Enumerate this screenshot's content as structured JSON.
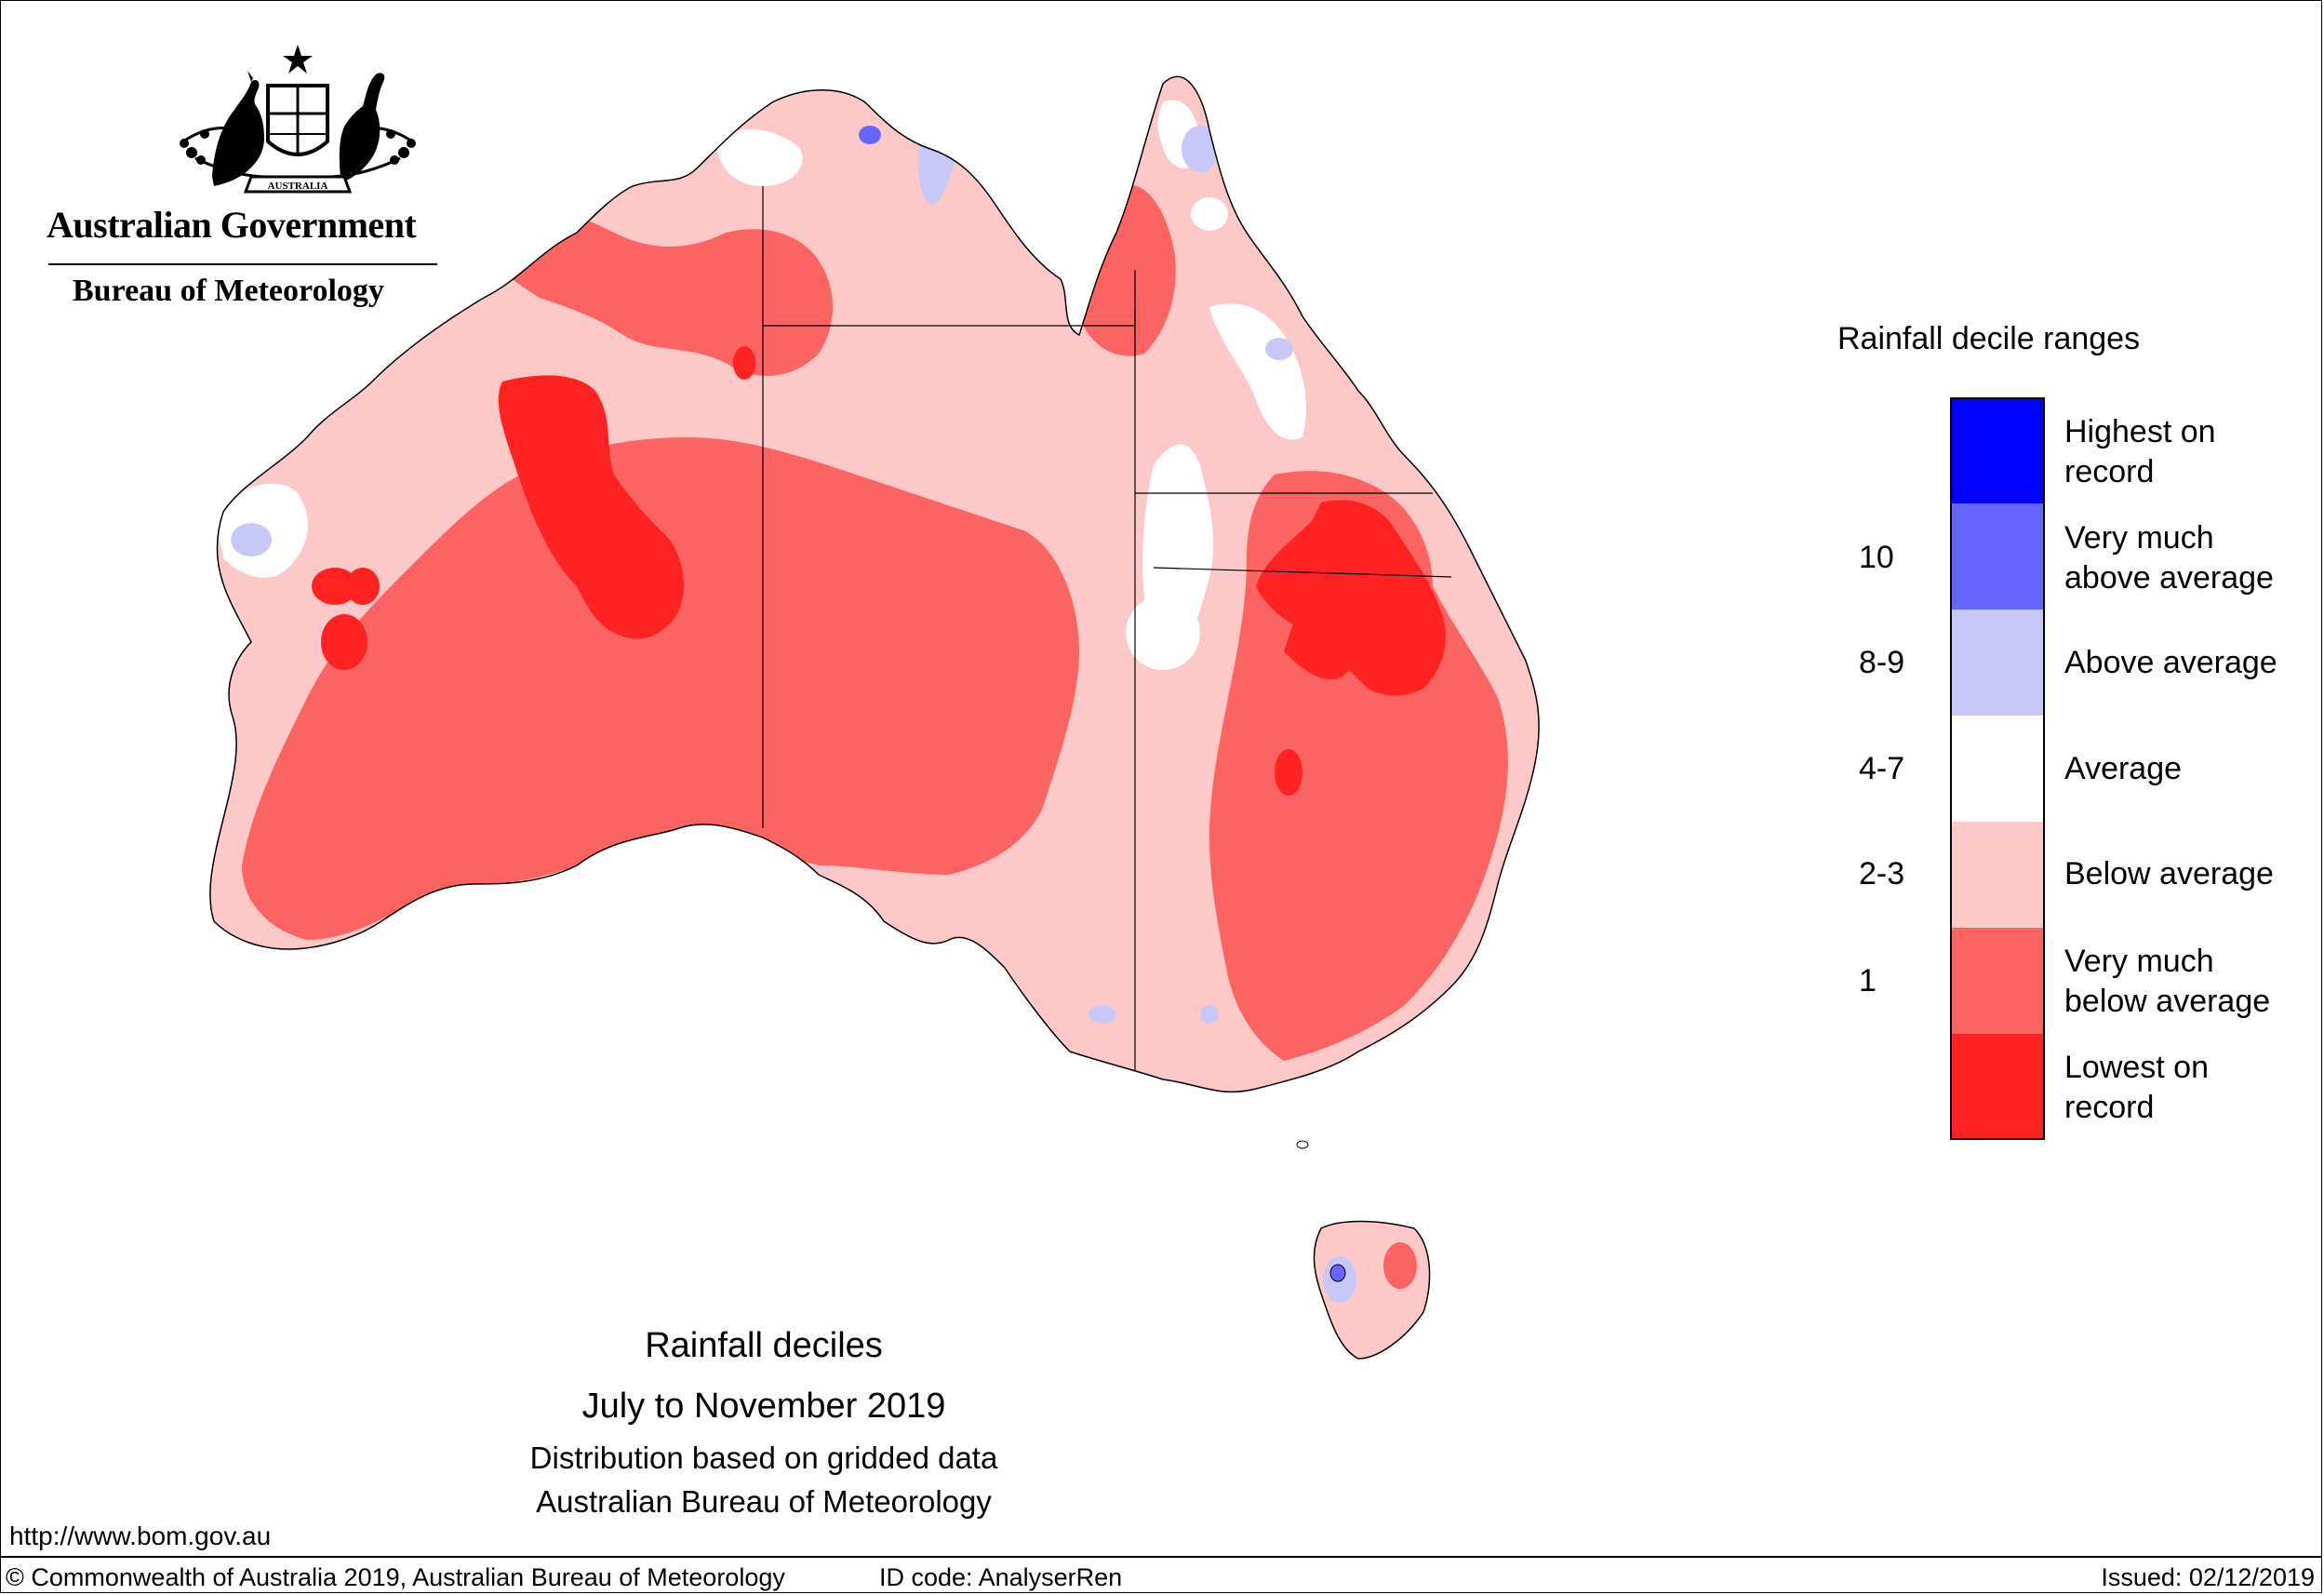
{
  "header": {
    "government": "Australian Government",
    "bureau": "Bureau of Meteorology",
    "crest_motto": "AUSTRALIA"
  },
  "legend": {
    "title": "Rainfall decile ranges",
    "items": [
      {
        "label_line1": "Highest on",
        "label_line2": "record",
        "range": "",
        "color": "#0000ff"
      },
      {
        "label_line1": "Very much",
        "label_line2": "above average",
        "range": "10",
        "color": "#6666ff"
      },
      {
        "label_line1": "Above average",
        "label_line2": "",
        "range": "8-9",
        "color": "#c8c8f8"
      },
      {
        "label_line1": "Average",
        "label_line2": "",
        "range": "4-7",
        "color": "#ffffff"
      },
      {
        "label_line1": "Below average",
        "label_line2": "",
        "range": "2-3",
        "color": "#fcc8c8"
      },
      {
        "label_line1": "Very much",
        "label_line2": "below average",
        "range": "1",
        "color": "#fc6464"
      },
      {
        "label_line1": "Lowest on",
        "label_line2": "record",
        "range": "",
        "color": "#ff2222"
      }
    ]
  },
  "captions": {
    "title": "Rainfall deciles",
    "period": "July to November 2019",
    "line3": "Distribution based on gridded data",
    "line4": "Australian Bureau of Meteorology"
  },
  "url": "http://www.bom.gov.au",
  "footer": {
    "copyright": "© Commonwealth of Australia 2019, Australian Bureau of Meteorology",
    "id_code": "ID code: AnalyserRen",
    "issued": "Issued: 02/12/2019"
  },
  "colors": {
    "highest": "#0000ff",
    "very_much_above": "#6666ff",
    "above": "#c8c8f8",
    "average": "#ffffff",
    "below": "#fcc8c8",
    "very_much_below": "#fc6464",
    "lowest": "#ff2222"
  }
}
